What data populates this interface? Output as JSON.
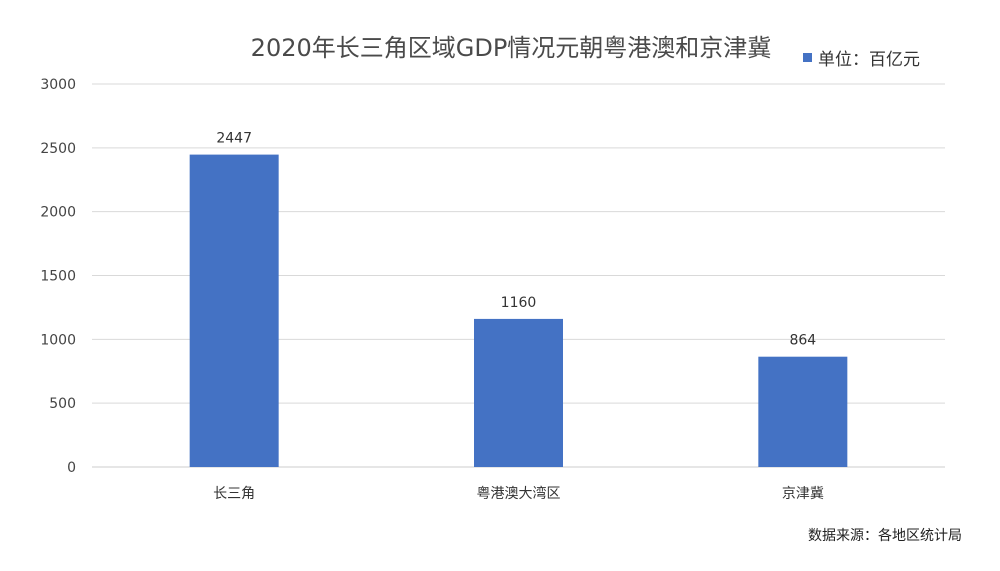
{
  "chart_data": {
    "type": "bar",
    "title": "2020年长三角区域GDP情况元朝粤港澳和京津冀",
    "legend": {
      "label": "单位：百亿元",
      "position": "top-right"
    },
    "categories": [
      "长三角",
      "粤港澳大湾区",
      "京津冀"
    ],
    "series": [
      {
        "name": "单位：百亿元",
        "values": [
          2447,
          1160,
          864
        ],
        "color": "#4472C4"
      }
    ],
    "data_labels": [
      "2447",
      "1160",
      "864"
    ],
    "y_ticks": [
      "0",
      "500",
      "1000",
      "1500",
      "2000",
      "2500",
      "3000"
    ],
    "ylim": [
      0,
      3000
    ],
    "grid": true,
    "xlabel": "",
    "ylabel": ""
  },
  "source_note": "数据来源：各地区统计局"
}
